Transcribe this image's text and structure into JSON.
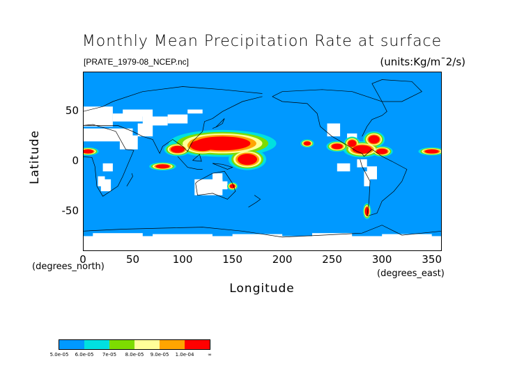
{
  "title": "Monthly Mean Precipitation Rate at surface",
  "file_label": "[PRATE_1979-08_NCEP.nc]",
  "units_label": "(units:Kg/m¯2/s)",
  "chart_data": {
    "type": "heatmap",
    "title": "Monthly Mean Precipitation Rate at surface",
    "xlabel": "Longitude",
    "ylabel": "Latitude",
    "x_unit": "(degrees_east)",
    "y_unit": "(degrees_north)",
    "xlim": [
      0,
      360
    ],
    "ylim": [
      -90,
      90
    ],
    "x_ticks": [
      "0",
      "50",
      "100",
      "150",
      "200",
      "250",
      "300",
      "350"
    ],
    "y_ticks": [
      "50",
      "0",
      "-50"
    ],
    "colorbar": {
      "labels": [
        "5.0e-05",
        "6.0e-05",
        "7e-05",
        "8.0e-05",
        "9.0e-05",
        "1.0e-04",
        "∞"
      ],
      "colors": [
        "#0099ff",
        "#00e0e0",
        "#7ddc00",
        "#ffff99",
        "#ffa500",
        "#ff0000"
      ]
    }
  },
  "colors": {
    "ocean": "#0099ff",
    "no_data": "#ffffff",
    "band_cyan": "#00e0e0",
    "band_green": "#7ddc00",
    "band_yellow": "#ffff99",
    "band_orange": "#ffa500",
    "band_red": "#ff0000"
  }
}
